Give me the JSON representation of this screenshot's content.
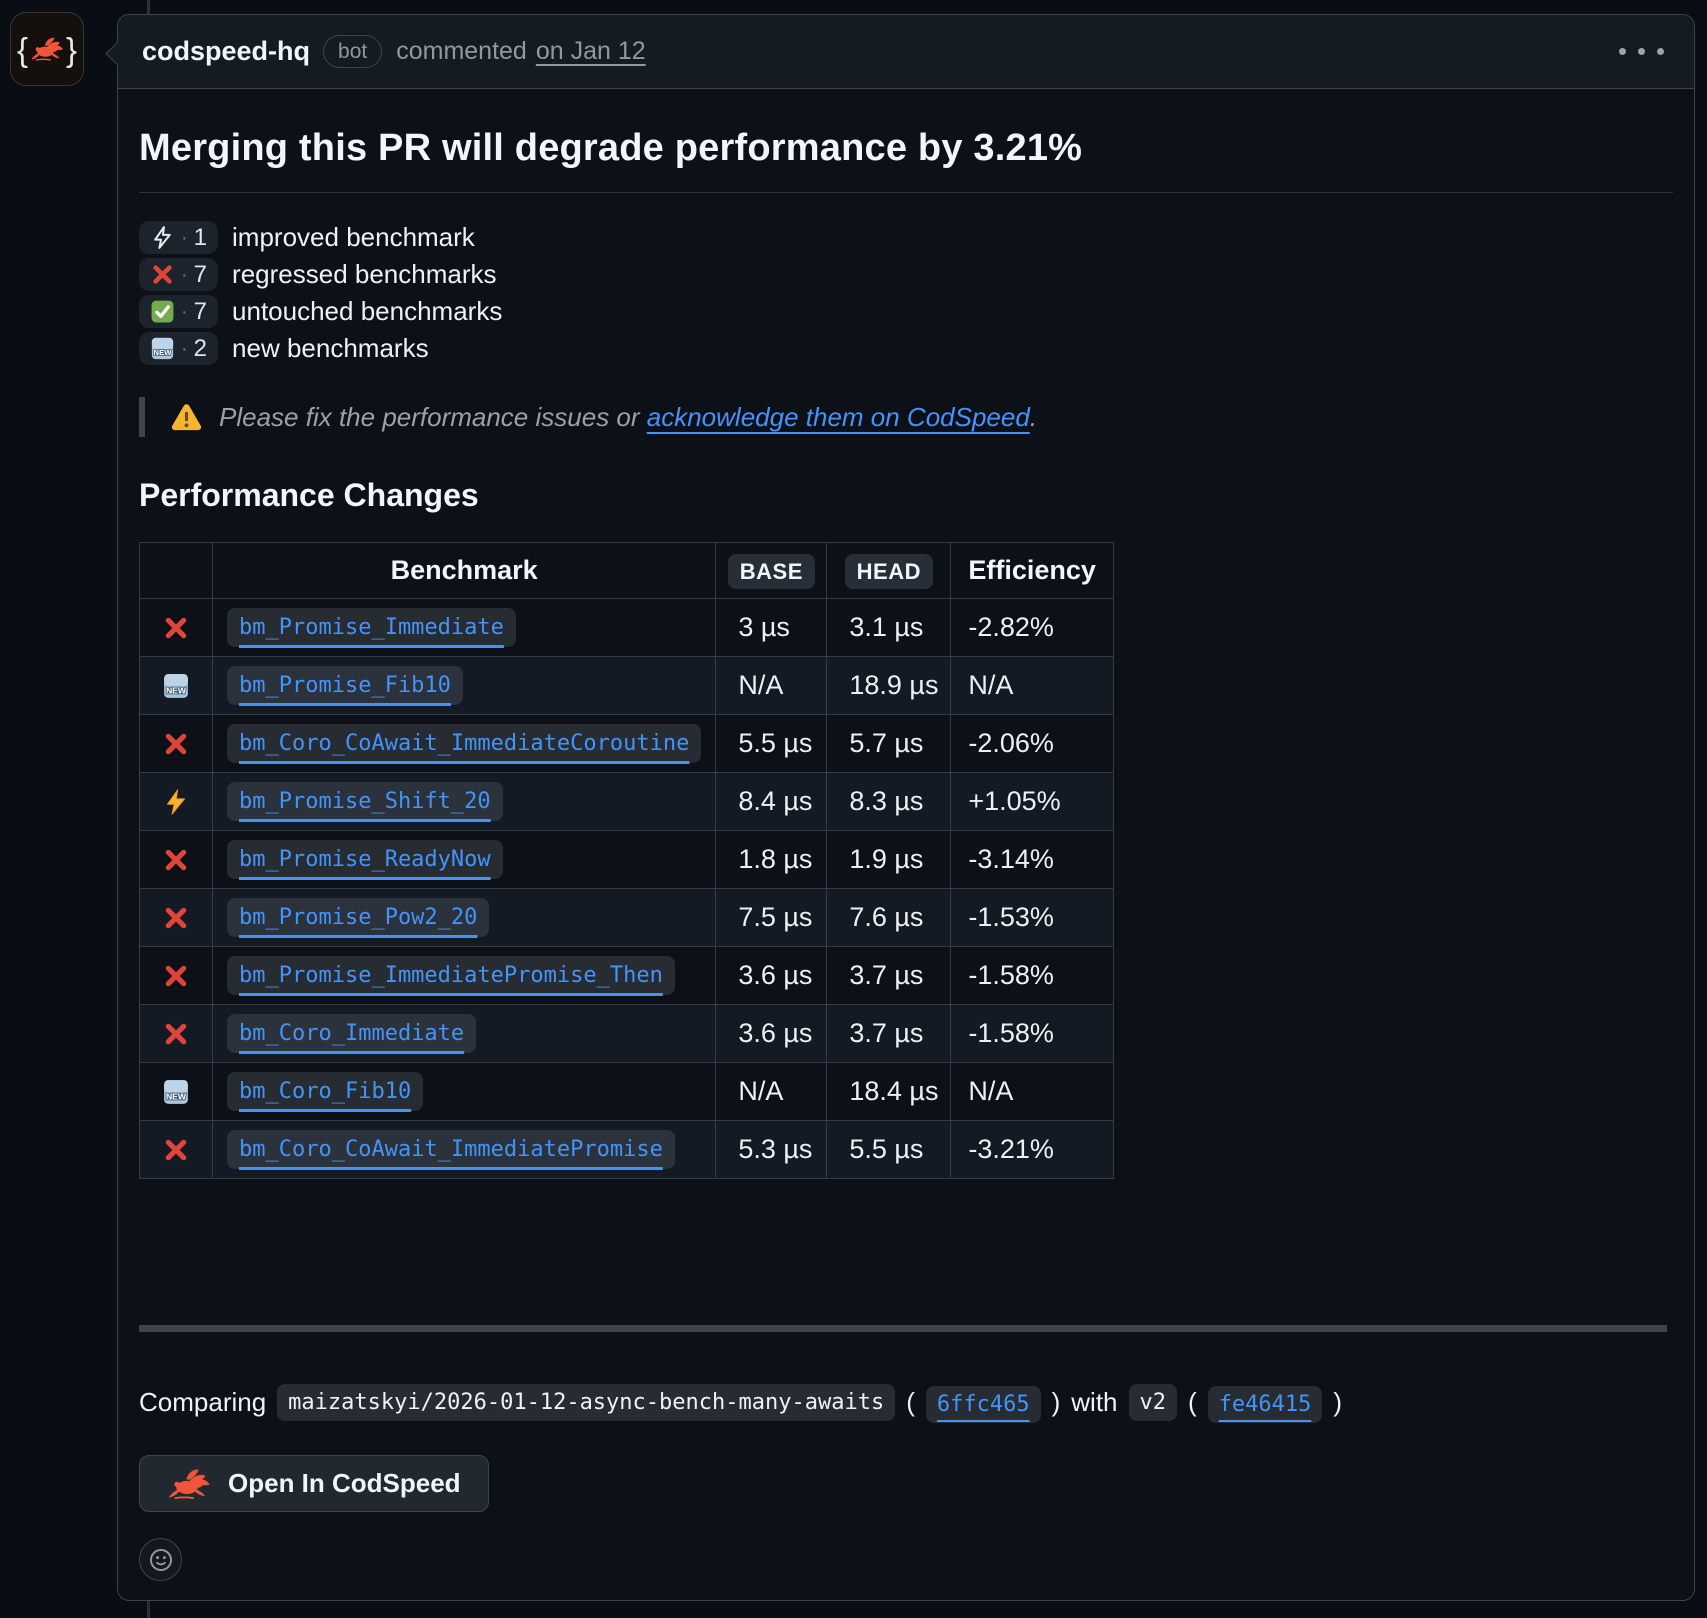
{
  "comment": {
    "author": "codspeed-hq",
    "bot_label": "bot",
    "action": "commented",
    "date": "on Jan 12",
    "avatar_glyphs": {
      "open": "{",
      "close": "}"
    }
  },
  "title": "Merging this PR will degrade performance by 3.21%",
  "badge_separator": "·",
  "summary": [
    {
      "icon": "zap-outline",
      "count": "1",
      "label": "improved benchmark"
    },
    {
      "icon": "cross-mark",
      "count": "7",
      "label": "regressed benchmarks"
    },
    {
      "icon": "check-mark",
      "count": "7",
      "label": "untouched benchmarks"
    },
    {
      "icon": "new-badge",
      "count": "2",
      "label": "new benchmarks"
    }
  ],
  "warning": {
    "prefix": "Please fix the performance issues or ",
    "link_text": "acknowledge them on CodSpeed",
    "suffix": "."
  },
  "section_heading": "Performance Changes",
  "table": {
    "headers": {
      "benchmark": "Benchmark",
      "base": "BASE",
      "head": "HEAD",
      "efficiency": "Efficiency"
    },
    "rows": [
      {
        "icon": "cross-mark",
        "name": "bm_Promise_Immediate",
        "base": "3 µs",
        "head": "3.1 µs",
        "efficiency": "-2.82%"
      },
      {
        "icon": "new-badge",
        "name": "bm_Promise_Fib10",
        "base": "N/A",
        "head": "18.9 µs",
        "efficiency": "N/A"
      },
      {
        "icon": "cross-mark",
        "name": "bm_Coro_CoAwait_ImmediateCoroutine",
        "base": "5.5 µs",
        "head": "5.7 µs",
        "efficiency": "-2.06%"
      },
      {
        "icon": "zap",
        "name": "bm_Promise_Shift_20",
        "base": "8.4 µs",
        "head": "8.3 µs",
        "efficiency": "+1.05%"
      },
      {
        "icon": "cross-mark",
        "name": "bm_Promise_ReadyNow",
        "base": "1.8 µs",
        "head": "1.9 µs",
        "efficiency": "-3.14%"
      },
      {
        "icon": "cross-mark",
        "name": "bm_Promise_Pow2_20",
        "base": "7.5 µs",
        "head": "7.6 µs",
        "efficiency": "-1.53%"
      },
      {
        "icon": "cross-mark",
        "name": "bm_Promise_ImmediatePromise_Then",
        "base": "3.6 µs",
        "head": "3.7 µs",
        "efficiency": "-1.58%"
      },
      {
        "icon": "cross-mark",
        "name": "bm_Coro_Immediate",
        "base": "3.6 µs",
        "head": "3.7 µs",
        "efficiency": "-1.58%"
      },
      {
        "icon": "new-badge",
        "name": "bm_Coro_Fib10",
        "base": "N/A",
        "head": "18.4 µs",
        "efficiency": "N/A"
      },
      {
        "icon": "cross-mark",
        "name": "bm_Coro_CoAwait_ImmediatePromise",
        "base": "5.3 µs",
        "head": "5.5 µs",
        "efficiency": "-3.21%"
      }
    ]
  },
  "comparing": {
    "label": "Comparing",
    "branch": "maizatskyi/2026-01-12-async-bench-many-awaits",
    "paren_open": "(",
    "paren_close": ")",
    "base_commit": "6ffc465",
    "with_text": "with",
    "head_ref": "v2",
    "head_commit": "fe46415"
  },
  "button": {
    "label": "Open In CodSpeed"
  },
  "colors": {
    "accent_blue": "#4493f8",
    "regression_red": "#e0443a",
    "success_green": "#73ab4e",
    "zap_yellow": "#fcb32c",
    "warning_yellow": "#f5b52e",
    "brand_orange": "#f1563b",
    "card_bg": "#0d1117",
    "header_bg": "#151b23",
    "border": "#3d444d"
  }
}
